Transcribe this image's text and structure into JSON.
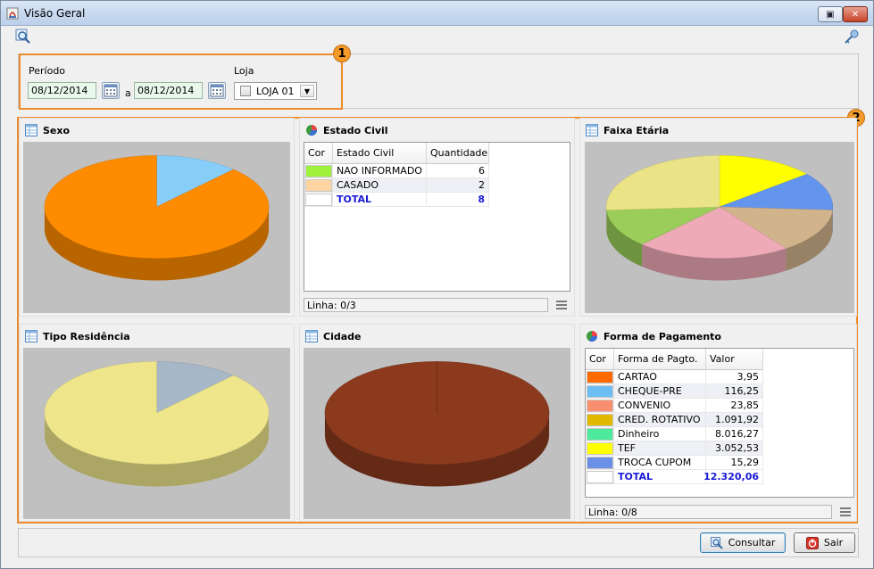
{
  "window": {
    "title": "Visão Geral"
  },
  "filters": {
    "periodo_label": "Período",
    "date_from": "08/12/2014",
    "date_separator": "a",
    "date_to": "08/12/2014",
    "loja_label": "Loja",
    "loja_value": "LOJA 01"
  },
  "badges": {
    "one": "1",
    "two": "2"
  },
  "panels": {
    "sexo": {
      "title": "Sexo",
      "chart": {
        "type": "pie",
        "slices": [
          {
            "color": "#87cdfa",
            "fraction": 0.12
          },
          {
            "color": "#ff8c00",
            "fraction": 0.88
          }
        ]
      }
    },
    "estado_civil": {
      "title": "Estado Civil",
      "columns": [
        "Cor",
        "Estado Civil",
        "Quantidade"
      ],
      "rows": [
        {
          "color": "#9ef23c",
          "label": "NAO INFORMADO",
          "value": "6"
        },
        {
          "color": "#fcd5a3",
          "label": "CASADO",
          "value": "2"
        }
      ],
      "total": {
        "label": "TOTAL",
        "value": "8"
      },
      "status": "Linha: 0/3"
    },
    "faixa_etaria": {
      "title": "Faixa Etária",
      "chart": {
        "type": "pie",
        "slices": [
          {
            "color": "#ffff00",
            "fraction": 0.14
          },
          {
            "color": "#6495ed",
            "fraction": 0.12
          },
          {
            "color": "#d2b48c",
            "fraction": 0.14
          },
          {
            "color": "#eeaab6",
            "fraction": 0.22
          },
          {
            "color": "#9acd5a",
            "fraction": 0.12
          },
          {
            "color": "#ebe487",
            "fraction": 0.26
          }
        ]
      }
    },
    "tipo_residencia": {
      "title": "Tipo Residência",
      "chart": {
        "type": "pie",
        "slices": [
          {
            "color": "#a6b7c8",
            "fraction": 0.12
          },
          {
            "color": "#efe68c",
            "fraction": 0.88
          }
        ]
      }
    },
    "cidade": {
      "title": "Cidade",
      "chart": {
        "type": "pie",
        "slices": [
          {
            "color": "#8b3a1e",
            "fraction": 1.0
          }
        ]
      }
    },
    "forma_pagamento": {
      "title": "Forma de Pagamento",
      "columns": [
        "Cor",
        "Forma de Pagto.",
        "Valor"
      ],
      "rows": [
        {
          "color": "#ff6a00",
          "label": "CARTAO",
          "value": "3,95"
        },
        {
          "color": "#6ebef6",
          "label": "CHEQUE-PRE",
          "value": "116,25"
        },
        {
          "color": "#f98f6f",
          "label": "CONVENIO",
          "value": "23,85"
        },
        {
          "color": "#e0b800",
          "label": "CRED. ROTATIVO",
          "value": "1.091,92"
        },
        {
          "color": "#4eea9c",
          "label": "Dinheiro",
          "value": "8.016,27"
        },
        {
          "color": "#ffff00",
          "label": "TEF",
          "value": "3.052,53"
        },
        {
          "color": "#6b91e6",
          "label": "TROCA CUPOM",
          "value": "15,29"
        }
      ],
      "total": {
        "label": "TOTAL",
        "value": "12.320,06"
      },
      "status": "Linha: 0/8"
    }
  },
  "buttons": {
    "consultar": "Consultar",
    "sair": "Sair"
  },
  "icons": [
    "app-icon",
    "search-icon",
    "key-icon",
    "calendar-icon",
    "table-icon",
    "pie-chart-icon",
    "menu-icon",
    "consult-icon",
    "exit-icon"
  ]
}
